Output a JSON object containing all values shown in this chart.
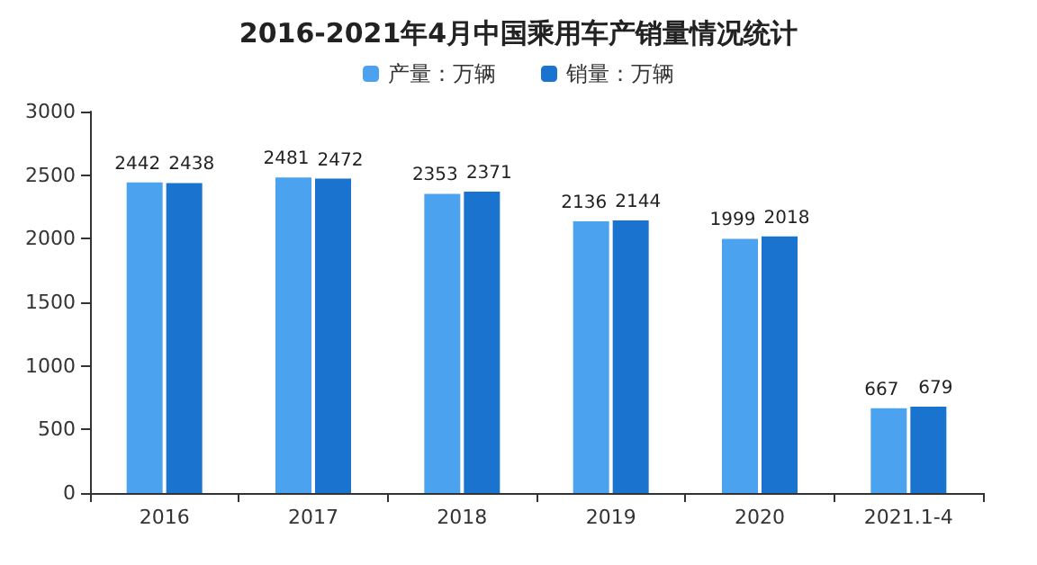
{
  "chart_data": {
    "type": "bar",
    "title": "2016-2021年4月中国乘用车产销量情况统计",
    "categories": [
      "2016",
      "2017",
      "2018",
      "2019",
      "2020",
      "2021.1-4"
    ],
    "series": [
      {
        "name": "产量：万辆",
        "color": "#4ba3f0",
        "values": [
          2442,
          2481,
          2353,
          2136,
          1999,
          667
        ]
      },
      {
        "name": "销量：万辆",
        "color": "#1a74cf",
        "values": [
          2438,
          2472,
          2371,
          2144,
          2018,
          679
        ]
      }
    ],
    "ylim": [
      0,
      3000
    ],
    "yticks": [
      0,
      500,
      1000,
      1500,
      2000,
      2500,
      3000
    ],
    "grid": false,
    "legend": "top",
    "data_labels": true
  }
}
